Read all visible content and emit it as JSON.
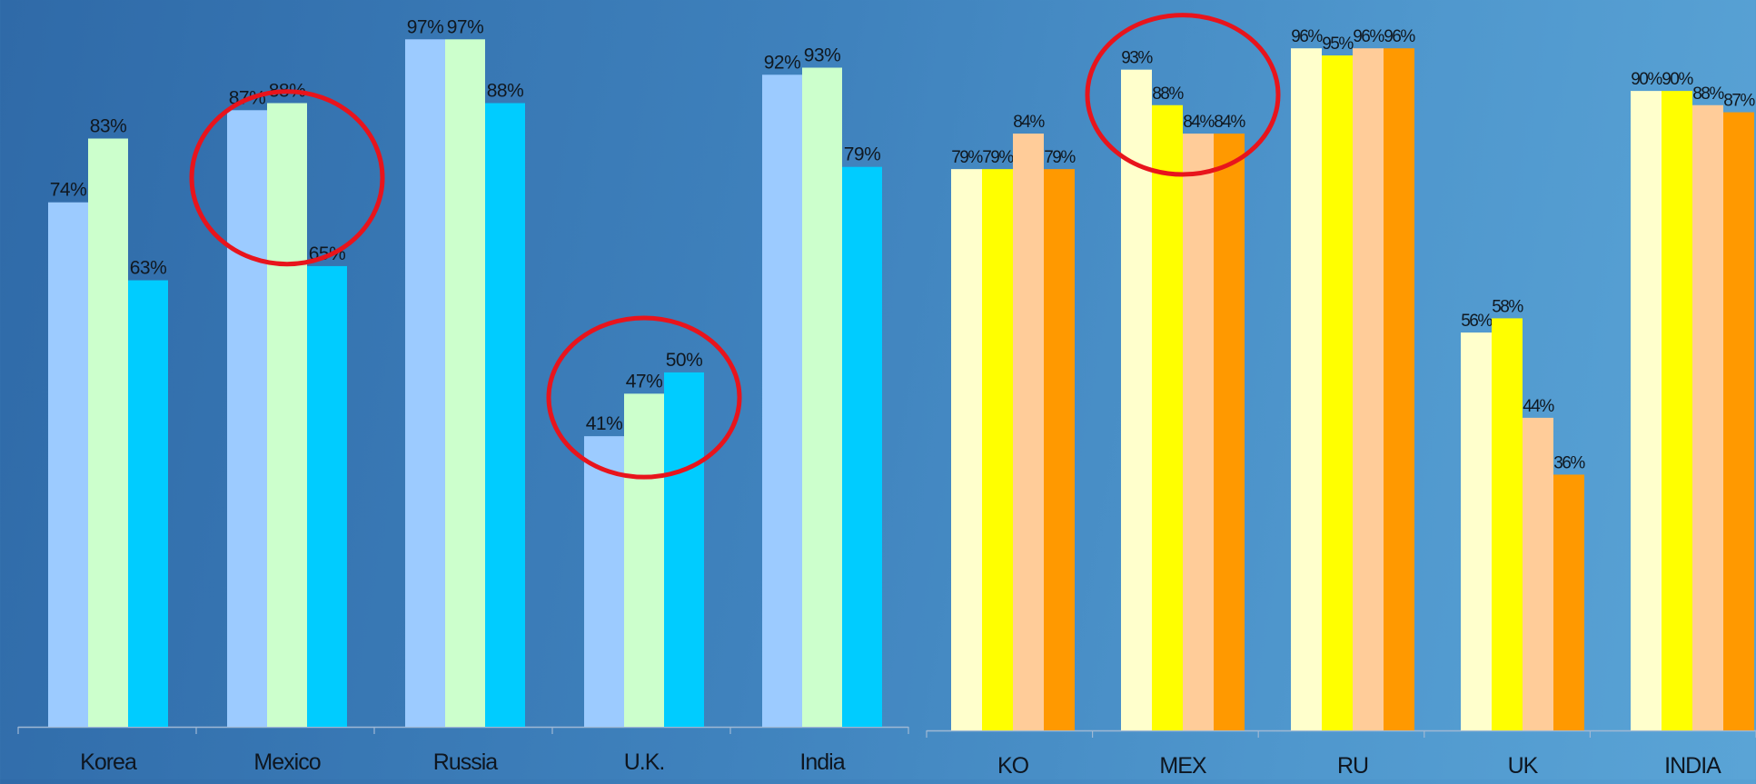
{
  "chart_data": [
    {
      "type": "bar",
      "categories": [
        "Korea",
        "Mexico",
        "Russia",
        "U.K.",
        "India"
      ],
      "series": [
        {
          "values": [
            74,
            87,
            97,
            41,
            92
          ],
          "labels": [
            "74%",
            "87%",
            "97%",
            "41%",
            "92%"
          ],
          "color": "#9ccbff"
        },
        {
          "values": [
            83,
            88,
            97,
            47,
            93
          ],
          "labels": [
            "83%",
            "88%",
            "97%",
            "47%",
            "93%"
          ],
          "color": "#ccffcc"
        },
        {
          "values": [
            63,
            65,
            88,
            50,
            79
          ],
          "labels": [
            "63%",
            "65%",
            "88%",
            "50%",
            "79%"
          ],
          "color": "#00ccff"
        }
      ],
      "ylim": [
        0,
        100
      ],
      "highlighted_categories": [
        "Mexico",
        "U.K."
      ],
      "highlight_color": "#e8141c"
    },
    {
      "type": "bar",
      "categories": [
        "KO",
        "MEX",
        "RU",
        "UK",
        "INDIA"
      ],
      "series": [
        {
          "values": [
            79,
            93,
            96,
            56,
            90
          ],
          "labels": [
            "79%",
            "93%",
            "96%",
            "56%",
            "90%"
          ],
          "color": "#ffffcc"
        },
        {
          "values": [
            79,
            88,
            95,
            58,
            90
          ],
          "labels": [
            "79%",
            "88%",
            "95%",
            "58%",
            "90%"
          ],
          "color": "#ffff00"
        },
        {
          "values": [
            84,
            84,
            96,
            44,
            88
          ],
          "labels": [
            "84%",
            "84%",
            "96%",
            "44%",
            "88%"
          ],
          "color": "#ffcc99"
        },
        {
          "values": [
            79,
            84,
            96,
            36,
            87
          ],
          "labels": [
            "79%",
            "84%",
            "96%",
            "36%",
            "87%"
          ],
          "color": "#ff9900"
        }
      ],
      "ylim": [
        0,
        100
      ],
      "highlighted_categories": [
        "MEX"
      ],
      "highlight_color": "#e8141c"
    }
  ]
}
